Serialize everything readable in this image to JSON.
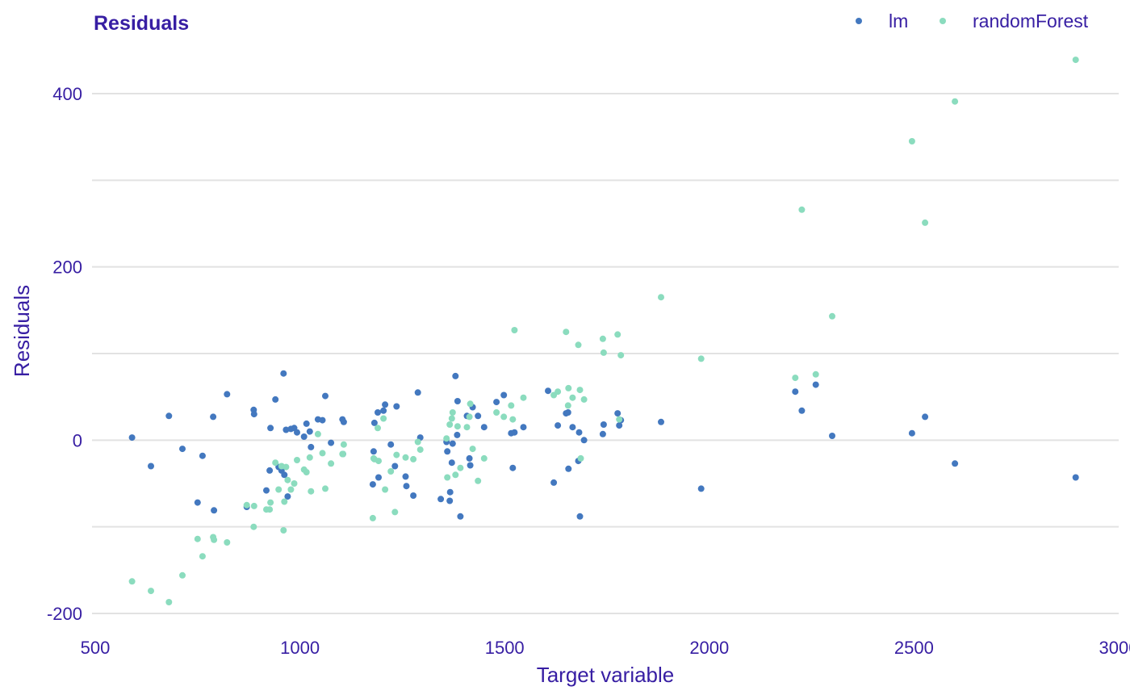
{
  "chart_data": {
    "type": "scatter",
    "title": "Residuals",
    "xlabel": "Target variable",
    "ylabel": "Residuals",
    "xlim": [
      500,
      3000
    ],
    "ylim": [
      -210,
      440
    ],
    "x_ticks": [
      500,
      1000,
      1500,
      2000,
      2500,
      3000
    ],
    "x_tick_labels": [
      "500",
      "1000",
      "1500",
      "2000",
      "2500",
      "3000"
    ],
    "y_ticks": [
      -200,
      0,
      200,
      400
    ],
    "y_tick_labels": [
      "-200",
      "0",
      "200",
      "400"
    ],
    "y_minor_gridlines": [
      -100,
      100,
      300
    ],
    "grid": true,
    "legend_position": "top-right",
    "colors": {
      "text": "#371ea3",
      "grid": "#e2e2e2",
      "lm": "#4378bf",
      "randomForest": "#8bdcbe"
    },
    "series": [
      {
        "name": "lm",
        "color": "#4378bf",
        "points": [
          [
            590,
            3
          ],
          [
            636,
            -30
          ],
          [
            680,
            28
          ],
          [
            713,
            -10
          ],
          [
            750,
            -72
          ],
          [
            762,
            -18
          ],
          [
            788,
            27
          ],
          [
            790,
            -81
          ],
          [
            822,
            53
          ],
          [
            870,
            -77
          ],
          [
            887,
            35
          ],
          [
            888,
            30
          ],
          [
            918,
            -58
          ],
          [
            926,
            -35
          ],
          [
            928,
            14
          ],
          [
            940,
            47
          ],
          [
            948,
            -31
          ],
          [
            955,
            -35
          ],
          [
            960,
            77
          ],
          [
            962,
            -40
          ],
          [
            966,
            12
          ],
          [
            970,
            -65
          ],
          [
            978,
            13
          ],
          [
            986,
            14
          ],
          [
            993,
            9
          ],
          [
            1010,
            4
          ],
          [
            1016,
            19
          ],
          [
            1024,
            10
          ],
          [
            1027,
            -8
          ],
          [
            1044,
            24
          ],
          [
            1055,
            23
          ],
          [
            1062,
            51
          ],
          [
            1076,
            -3
          ],
          [
            1104,
            24
          ],
          [
            1105,
            -16
          ],
          [
            1107,
            21
          ],
          [
            1178,
            -51
          ],
          [
            1180,
            -13
          ],
          [
            1182,
            20
          ],
          [
            1190,
            32
          ],
          [
            1192,
            -43
          ],
          [
            1204,
            34
          ],
          [
            1208,
            41
          ],
          [
            1222,
            -5
          ],
          [
            1232,
            -30
          ],
          [
            1236,
            39
          ],
          [
            1258,
            -42
          ],
          [
            1260,
            -53
          ],
          [
            1277,
            -64
          ],
          [
            1288,
            55
          ],
          [
            1294,
            3
          ],
          [
            1344,
            -68
          ],
          [
            1358,
            -2
          ],
          [
            1360,
            -13
          ],
          [
            1366,
            -70
          ],
          [
            1367,
            -60
          ],
          [
            1371,
            -26
          ],
          [
            1373,
            -4
          ],
          [
            1380,
            74
          ],
          [
            1384,
            6
          ],
          [
            1385,
            45
          ],
          [
            1392,
            -88
          ],
          [
            1408,
            28
          ],
          [
            1414,
            -21
          ],
          [
            1416,
            -29
          ],
          [
            1422,
            38
          ],
          [
            1435,
            28
          ],
          [
            1450,
            15
          ],
          [
            1480,
            44
          ],
          [
            1498,
            52
          ],
          [
            1516,
            8
          ],
          [
            1520,
            -32
          ],
          [
            1524,
            9
          ],
          [
            1546,
            15
          ],
          [
            1606,
            57
          ],
          [
            1620,
            -49
          ],
          [
            1630,
            17
          ],
          [
            1650,
            31
          ],
          [
            1655,
            32
          ],
          [
            1656,
            -33
          ],
          [
            1666,
            15
          ],
          [
            1680,
            -24
          ],
          [
            1682,
            9
          ],
          [
            1684,
            -88
          ],
          [
            1694,
            0
          ],
          [
            1740,
            7
          ],
          [
            1742,
            18
          ],
          [
            1776,
            31
          ],
          [
            1780,
            17
          ],
          [
            1784,
            23
          ],
          [
            1882,
            21
          ],
          [
            1980,
            -56
          ],
          [
            2210,
            56
          ],
          [
            2226,
            34
          ],
          [
            2260,
            64
          ],
          [
            2300,
            5
          ],
          [
            2495,
            8
          ],
          [
            2527,
            27
          ],
          [
            2600,
            -27
          ],
          [
            2895,
            -43
          ]
        ]
      },
      {
        "name": "randomForest",
        "color": "#8bdcbe",
        "points": [
          [
            590,
            -163
          ],
          [
            636,
            -174
          ],
          [
            680,
            -187
          ],
          [
            713,
            -156
          ],
          [
            750,
            -114
          ],
          [
            762,
            -134
          ],
          [
            788,
            -112
          ],
          [
            790,
            -115
          ],
          [
            822,
            -118
          ],
          [
            870,
            -75
          ],
          [
            887,
            -100
          ],
          [
            888,
            -76
          ],
          [
            918,
            -80
          ],
          [
            926,
            -80
          ],
          [
            928,
            -72
          ],
          [
            940,
            -26
          ],
          [
            948,
            -57
          ],
          [
            955,
            -30
          ],
          [
            960,
            -104
          ],
          [
            962,
            -71
          ],
          [
            966,
            -31
          ],
          [
            970,
            -46
          ],
          [
            978,
            -57
          ],
          [
            986,
            -50
          ],
          [
            993,
            -23
          ],
          [
            1010,
            -34
          ],
          [
            1016,
            -37
          ],
          [
            1024,
            -20
          ],
          [
            1027,
            -59
          ],
          [
            1044,
            7
          ],
          [
            1055,
            -15
          ],
          [
            1062,
            -56
          ],
          [
            1076,
            -27
          ],
          [
            1104,
            -16
          ],
          [
            1105,
            -16
          ],
          [
            1107,
            -5
          ],
          [
            1178,
            -90
          ],
          [
            1180,
            -21
          ],
          [
            1182,
            -22
          ],
          [
            1190,
            14
          ],
          [
            1192,
            -24
          ],
          [
            1204,
            25
          ],
          [
            1208,
            -57
          ],
          [
            1222,
            -36
          ],
          [
            1232,
            -83
          ],
          [
            1236,
            -17
          ],
          [
            1258,
            -20
          ],
          [
            1277,
            -22
          ],
          [
            1288,
            -2
          ],
          [
            1294,
            -11
          ],
          [
            1358,
            2
          ],
          [
            1360,
            -43
          ],
          [
            1366,
            18
          ],
          [
            1371,
            25
          ],
          [
            1373,
            32
          ],
          [
            1380,
            -40
          ],
          [
            1385,
            16
          ],
          [
            1392,
            -32
          ],
          [
            1408,
            15
          ],
          [
            1414,
            27
          ],
          [
            1416,
            42
          ],
          [
            1422,
            -10
          ],
          [
            1435,
            -47
          ],
          [
            1450,
            -21
          ],
          [
            1480,
            32
          ],
          [
            1498,
            27
          ],
          [
            1516,
            40
          ],
          [
            1520,
            24
          ],
          [
            1524,
            127
          ],
          [
            1546,
            49
          ],
          [
            1620,
            52
          ],
          [
            1630,
            56
          ],
          [
            1650,
            125
          ],
          [
            1655,
            40
          ],
          [
            1656,
            60
          ],
          [
            1666,
            49
          ],
          [
            1680,
            110
          ],
          [
            1684,
            58
          ],
          [
            1686,
            -21
          ],
          [
            1694,
            47
          ],
          [
            1740,
            117
          ],
          [
            1742,
            101
          ],
          [
            1776,
            122
          ],
          [
            1780,
            24
          ],
          [
            1784,
            98
          ],
          [
            1882,
            165
          ],
          [
            1980,
            94
          ],
          [
            2210,
            72
          ],
          [
            2226,
            266
          ],
          [
            2260,
            76
          ],
          [
            2300,
            143
          ],
          [
            2495,
            345
          ],
          [
            2527,
            251
          ],
          [
            2600,
            391
          ],
          [
            2895,
            439
          ]
        ]
      }
    ]
  }
}
